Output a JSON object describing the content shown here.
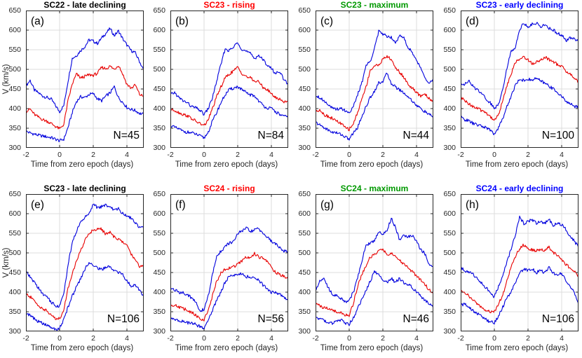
{
  "figure": {
    "ylabel": "V (km/s)",
    "xlabel": "Time from zero epoch (days)",
    "colors": {
      "median_line": "#e80000",
      "quartile_line": "#0000dd",
      "grid": "#dcdcdc",
      "axis": "#262626",
      "background": "#ffffff"
    }
  },
  "chart_data": [
    {
      "type": "line",
      "letter": "(a)",
      "title": "SC22 - late declining",
      "title_color": "#000000",
      "n_label": "N=45",
      "x_range": [
        -2,
        5
      ],
      "y_range": [
        300,
        650
      ],
      "x_ticks": [
        -2,
        0,
        2,
        4
      ],
      "y_ticks": [
        650,
        600,
        550,
        500,
        450,
        400,
        350,
        300
      ],
      "x_step": 0.25,
      "series": [
        {
          "name": "upper quartile",
          "color": "#0000dd",
          "values": [
            458,
            472,
            447,
            440,
            432,
            428,
            424,
            408,
            392,
            408,
            470,
            528,
            535,
            548,
            558,
            575,
            572,
            566,
            580,
            592,
            604,
            586,
            598,
            578,
            562,
            548,
            542,
            520,
            497
          ]
        },
        {
          "name": "lower quartile",
          "color": "#0000dd",
          "values": [
            342,
            338,
            335,
            332,
            330,
            328,
            326,
            322,
            318,
            322,
            352,
            390,
            418,
            430,
            428,
            436,
            438,
            425,
            420,
            432,
            440,
            456,
            428,
            416,
            403,
            398,
            395,
            388,
            385
          ]
        },
        {
          "name": "median",
          "color": "#e80000",
          "values": [
            392,
            399,
            385,
            378,
            372,
            368,
            362,
            355,
            348,
            360,
            420,
            462,
            488,
            478,
            482,
            486,
            485,
            490,
            505,
            502,
            508,
            500,
            511,
            488,
            462,
            452,
            460,
            436,
            431
          ]
        }
      ]
    },
    {
      "type": "line",
      "letter": "(b)",
      "title": "SC23 - rising",
      "title_color": "#ff0000",
      "n_label": "N=84",
      "x_range": [
        -2,
        5
      ],
      "y_range": [
        300,
        650
      ],
      "x_ticks": [
        -2,
        0,
        2,
        4
      ],
      "y_ticks": [
        650,
        600,
        550,
        500,
        450,
        400,
        350,
        300
      ],
      "x_step": 0.25,
      "series": [
        {
          "name": "upper quartile",
          "color": "#0000dd",
          "values": [
            435,
            441,
            428,
            420,
            415,
            405,
            402,
            396,
            385,
            400,
            428,
            470,
            512,
            552,
            548,
            556,
            570,
            551,
            546,
            540,
            528,
            536,
            524,
            512,
            502,
            489,
            496,
            472,
            463
          ]
        },
        {
          "name": "lower quartile",
          "color": "#0000dd",
          "values": [
            357,
            352,
            348,
            342,
            340,
            338,
            335,
            330,
            325,
            340,
            368,
            390,
            415,
            435,
            448,
            452,
            456,
            448,
            440,
            435,
            432,
            420,
            408,
            402,
            400,
            392,
            385,
            380,
            378
          ]
        },
        {
          "name": "median",
          "color": "#e80000",
          "values": [
            398,
            396,
            390,
            385,
            382,
            375,
            368,
            362,
            356,
            372,
            400,
            430,
            455,
            478,
            488,
            496,
            505,
            490,
            482,
            478,
            470,
            468,
            455,
            448,
            438,
            428,
            424,
            417,
            421
          ]
        }
      ]
    },
    {
      "type": "line",
      "letter": "(c)",
      "title": "SC23 - maximum",
      "title_color": "#009900",
      "n_label": "N=44",
      "x_range": [
        -2,
        5
      ],
      "y_range": [
        300,
        650
      ],
      "x_ticks": [
        -2,
        0,
        2,
        4
      ],
      "y_ticks": [
        650,
        600,
        550,
        500,
        450,
        400,
        350,
        300
      ],
      "x_step": 0.25,
      "series": [
        {
          "name": "upper quartile",
          "color": "#0000dd",
          "values": [
            435,
            428,
            420,
            412,
            400,
            398,
            402,
            395,
            390,
            405,
            435,
            465,
            510,
            520,
            555,
            596,
            590,
            585,
            582,
            570,
            585,
            580,
            555,
            545,
            520,
            505,
            480,
            465,
            472
          ]
        },
        {
          "name": "lower quartile",
          "color": "#0000dd",
          "values": [
            365,
            358,
            352,
            345,
            340,
            338,
            335,
            328,
            322,
            338,
            352,
            380,
            405,
            428,
            445,
            465,
            470,
            490,
            465,
            455,
            448,
            440,
            430,
            420,
            408,
            400,
            392,
            385,
            378
          ]
        },
        {
          "name": "median",
          "color": "#e80000",
          "values": [
            392,
            398,
            385,
            380,
            375,
            368,
            362,
            352,
            347,
            362,
            390,
            425,
            455,
            498,
            508,
            512,
            525,
            534,
            524,
            505,
            492,
            480,
            462,
            452,
            440,
            432,
            438,
            425,
            420
          ]
        }
      ]
    },
    {
      "type": "line",
      "letter": "(d)",
      "title": "SC23 - early declining",
      "title_color": "#0000ff",
      "n_label": "N=100",
      "x_range": [
        -2,
        5
      ],
      "y_range": [
        300,
        650
      ],
      "x_ticks": [
        -2,
        0,
        2,
        4
      ],
      "y_ticks": [
        650,
        600,
        550,
        500,
        450,
        400,
        350,
        300
      ],
      "x_step": 0.25,
      "series": [
        {
          "name": "upper quartile",
          "color": "#0000dd",
          "values": [
            465,
            462,
            470,
            455,
            448,
            440,
            425,
            415,
            400,
            412,
            450,
            505,
            545,
            558,
            602,
            618,
            608,
            615,
            618,
            610,
            612,
            605,
            600,
            592,
            588,
            572,
            580,
            578,
            575
          ]
        },
        {
          "name": "lower quartile",
          "color": "#0000dd",
          "values": [
            378,
            372,
            368,
            362,
            358,
            355,
            352,
            345,
            335,
            352,
            375,
            405,
            432,
            460,
            475,
            472,
            475,
            472,
            478,
            470,
            465,
            458,
            450,
            442,
            430,
            420,
            412,
            406,
            405
          ]
        },
        {
          "name": "median",
          "color": "#e80000",
          "values": [
            428,
            420,
            412,
            405,
            400,
            395,
            390,
            380,
            370,
            385,
            420,
            458,
            490,
            518,
            525,
            532,
            525,
            515,
            518,
            525,
            532,
            525,
            520,
            512,
            508,
            495,
            488,
            478,
            468
          ]
        }
      ]
    },
    {
      "type": "line",
      "letter": "(e)",
      "title": "SC23 - late declining",
      "title_color": "#000000",
      "n_label": "N=106",
      "x_range": [
        -2,
        5
      ],
      "y_range": [
        300,
        650
      ],
      "x_ticks": [
        -2,
        0,
        2,
        4
      ],
      "y_ticks": [
        650,
        600,
        550,
        500,
        450,
        400,
        350,
        300
      ],
      "x_step": 0.25,
      "series": [
        {
          "name": "upper quartile",
          "color": "#0000dd",
          "values": [
            452,
            438,
            425,
            410,
            395,
            388,
            375,
            365,
            365,
            395,
            470,
            525,
            555,
            580,
            590,
            600,
            626,
            615,
            618,
            622,
            618,
            608,
            612,
            600,
            595,
            588,
            578,
            565,
            570
          ]
        },
        {
          "name": "lower quartile",
          "color": "#0000dd",
          "values": [
            348,
            340,
            332,
            325,
            320,
            315,
            310,
            305,
            308,
            330,
            362,
            390,
            412,
            435,
            458,
            476,
            470,
            462,
            458,
            462,
            465,
            455,
            450,
            445,
            428,
            415,
            420,
            405,
            390
          ]
        },
        {
          "name": "median",
          "color": "#e80000",
          "values": [
            395,
            388,
            378,
            365,
            358,
            352,
            340,
            334,
            332,
            355,
            410,
            448,
            478,
            505,
            532,
            550,
            558,
            562,
            560,
            548,
            552,
            540,
            535,
            528,
            518,
            498,
            482,
            465,
            470
          ]
        }
      ]
    },
    {
      "type": "line",
      "letter": "(f)",
      "title": "SC24 - rising",
      "title_color": "#ff0000",
      "n_label": "N=56",
      "x_range": [
        -2,
        5
      ],
      "y_range": [
        300,
        650
      ],
      "x_ticks": [
        -2,
        0,
        2,
        4
      ],
      "y_ticks": [
        650,
        600,
        550,
        500,
        450,
        400,
        350,
        300
      ],
      "x_step": 0.25,
      "series": [
        {
          "name": "upper quartile",
          "color": "#0000dd",
          "values": [
            412,
            405,
            400,
            398,
            395,
            385,
            375,
            352,
            356,
            390,
            445,
            490,
            505,
            515,
            525,
            528,
            550,
            555,
            563,
            555,
            558,
            562,
            550,
            540,
            530,
            522,
            515,
            505,
            502
          ]
        },
        {
          "name": "lower quartile",
          "color": "#0000dd",
          "values": [
            332,
            330,
            328,
            325,
            322,
            320,
            318,
            312,
            308,
            330,
            352,
            380,
            400,
            425,
            440,
            445,
            442,
            448,
            440,
            438,
            435,
            430,
            418,
            408,
            400,
            398,
            394,
            385,
            382
          ]
        },
        {
          "name": "median",
          "color": "#e80000",
          "values": [
            365,
            368,
            362,
            358,
            355,
            348,
            342,
            332,
            330,
            355,
            390,
            428,
            448,
            458,
            462,
            465,
            470,
            480,
            490,
            485,
            498,
            490,
            485,
            480,
            462,
            450,
            445,
            440,
            438
          ]
        }
      ]
    },
    {
      "type": "line",
      "letter": "(g)",
      "title": "SC24 - maximum",
      "title_color": "#009900",
      "n_label": "N=46",
      "x_range": [
        -2,
        5
      ],
      "y_range": [
        300,
        650
      ],
      "x_ticks": [
        -2,
        0,
        2,
        4
      ],
      "y_ticks": [
        650,
        600,
        550,
        500,
        450,
        400,
        350,
        300
      ],
      "x_step": 0.25,
      "series": [
        {
          "name": "upper quartile",
          "color": "#0000dd",
          "values": [
            405,
            430,
            435,
            412,
            395,
            390,
            385,
            375,
            380,
            400,
            435,
            480,
            520,
            525,
            530,
            555,
            548,
            558,
            588,
            565,
            532,
            545,
            540,
            545,
            528,
            510,
            498,
            468,
            468
          ]
        },
        {
          "name": "lower quartile",
          "color": "#0000dd",
          "values": [
            337,
            332,
            328,
            322,
            320,
            325,
            330,
            320,
            318,
            335,
            358,
            380,
            405,
            428,
            452,
            445,
            430,
            425,
            435,
            425,
            435,
            425,
            420,
            412,
            400,
            390,
            380,
            372,
            360
          ]
        },
        {
          "name": "median",
          "color": "#e80000",
          "values": [
            370,
            365,
            360,
            358,
            355,
            350,
            348,
            342,
            340,
            372,
            415,
            445,
            468,
            490,
            495,
            505,
            508,
            495,
            500,
            492,
            480,
            470,
            462,
            452,
            442,
            432,
            420,
            406,
            395
          ]
        }
      ]
    },
    {
      "type": "line",
      "letter": "(h)",
      "title": "SC24 - early declining",
      "title_color": "#0000ff",
      "n_label": "N=106",
      "x_range": [
        -2,
        5
      ],
      "y_range": [
        300,
        650
      ],
      "x_ticks": [
        -2,
        0,
        2,
        4
      ],
      "y_ticks": [
        650,
        600,
        550,
        500,
        450,
        400,
        350,
        300
      ],
      "x_step": 0.25,
      "series": [
        {
          "name": "upper quartile",
          "color": "#0000dd",
          "values": [
            462,
            455,
            450,
            445,
            435,
            422,
            412,
            398,
            388,
            415,
            440,
            478,
            510,
            545,
            592,
            575,
            580,
            585,
            575,
            580,
            575,
            585,
            570,
            575,
            572,
            560,
            542,
            530,
            515
          ]
        },
        {
          "name": "lower quartile",
          "color": "#0000dd",
          "values": [
            365,
            370,
            360,
            352,
            345,
            338,
            330,
            324,
            322,
            340,
            362,
            385,
            402,
            425,
            448,
            458,
            455,
            460,
            450,
            455,
            450,
            462,
            448,
            445,
            448,
            428,
            415,
            398,
            372
          ]
        },
        {
          "name": "median",
          "color": "#e80000",
          "values": [
            408,
            398,
            390,
            380,
            370,
            362,
            355,
            348,
            350,
            372,
            392,
            428,
            465,
            490,
            512,
            520,
            512,
            508,
            505,
            510,
            505,
            515,
            500,
            495,
            482,
            470,
            462,
            452,
            440
          ]
        }
      ]
    }
  ]
}
